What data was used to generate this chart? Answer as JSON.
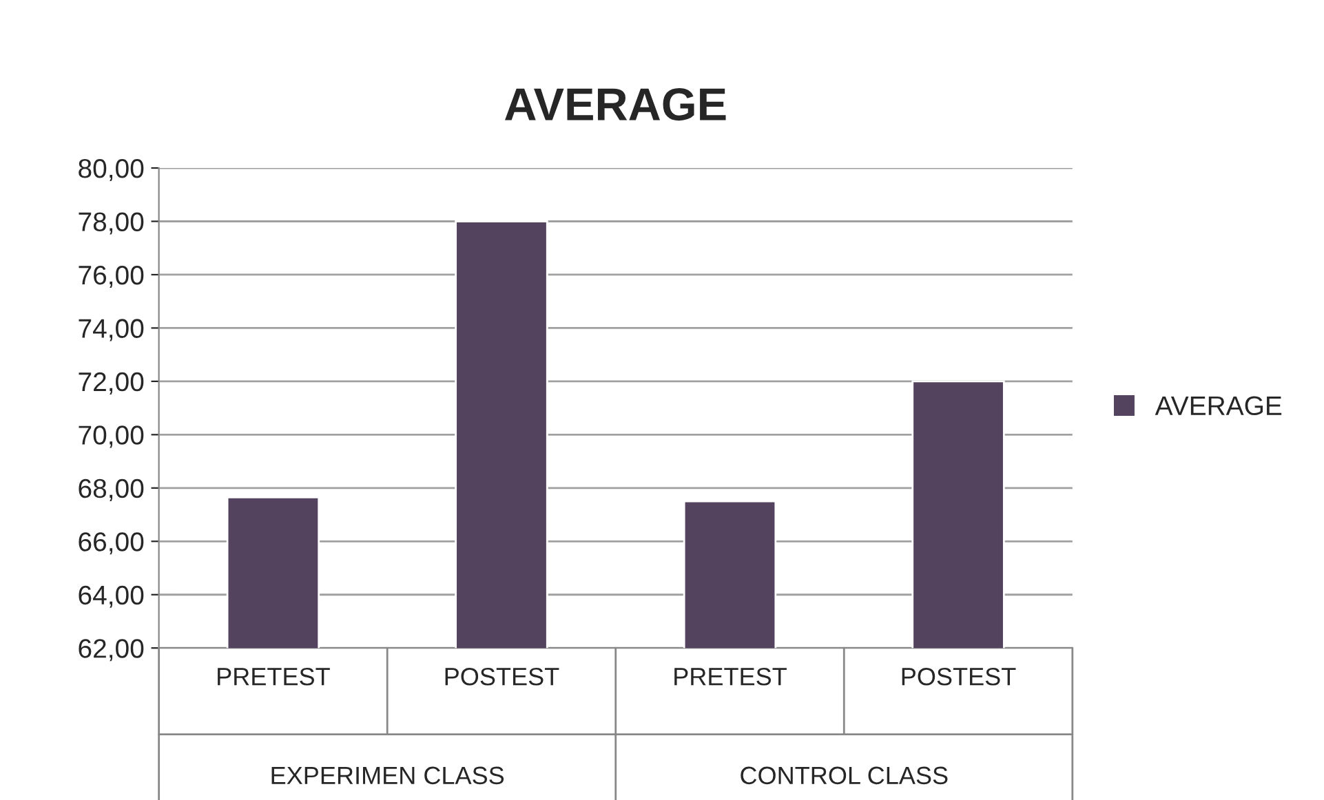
{
  "chart_data": {
    "type": "bar",
    "title": "AVERAGE",
    "categories": [
      "PRETEST",
      "POSTEST",
      "PRETEST",
      "POSTEST"
    ],
    "series": [
      {
        "name": "AVERAGE",
        "color": "#54435f",
        "values": [
          67.65,
          78.0,
          67.5,
          72.0
        ]
      }
    ],
    "annotations": [
      "EXPERIMEN CLASS",
      "CONTROL CLASS"
    ],
    "ylim": [
      62,
      80
    ],
    "yticks": [
      {
        "value": 62,
        "label": "62,00"
      },
      {
        "value": 64,
        "label": "64,00"
      },
      {
        "value": 66,
        "label": "66,00"
      },
      {
        "value": 68,
        "label": "68,00"
      },
      {
        "value": 70,
        "label": "70,00"
      },
      {
        "value": 72,
        "label": "72,00"
      },
      {
        "value": 74,
        "label": "74,00"
      },
      {
        "value": 76,
        "label": "76,00"
      },
      {
        "value": 78,
        "label": "78,00"
      },
      {
        "value": 80,
        "label": "80,00"
      }
    ],
    "grid": "y",
    "legend": "right"
  }
}
